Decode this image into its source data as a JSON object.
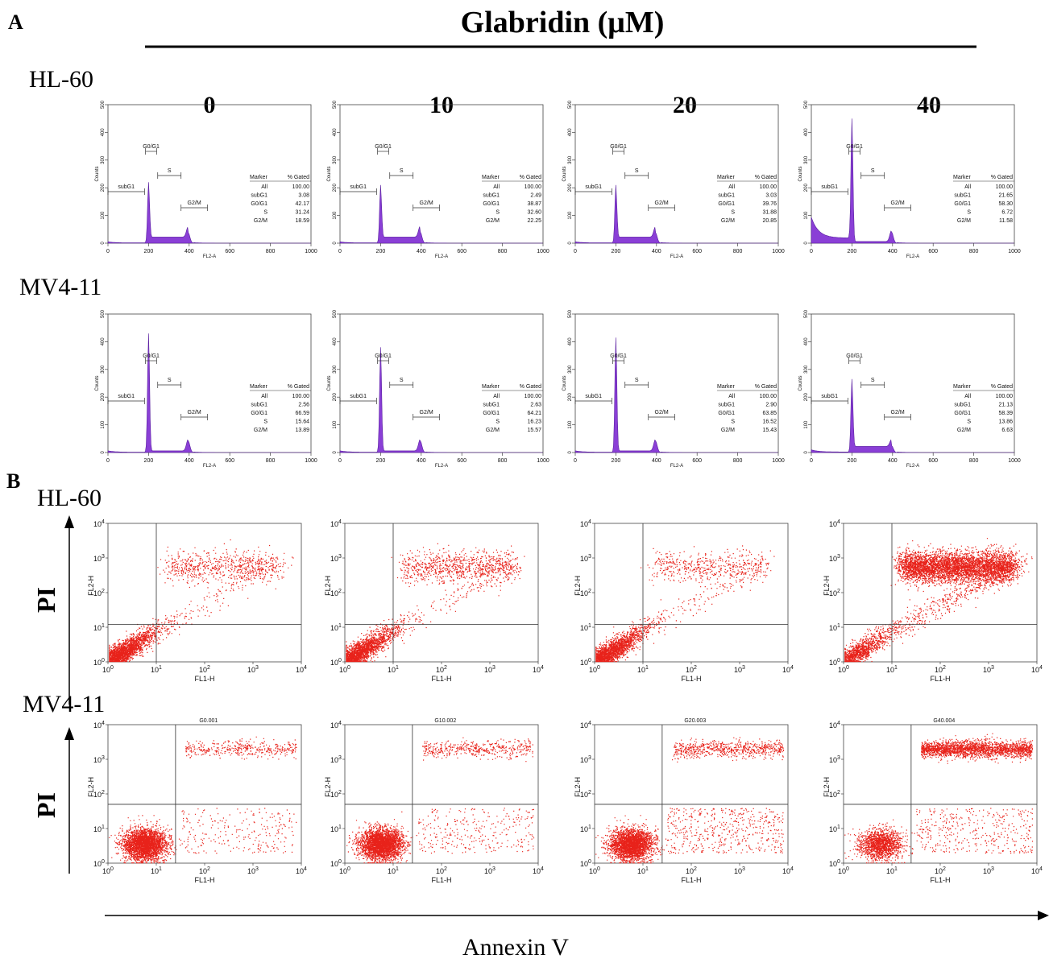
{
  "figure": {
    "panel_a_letter": "A",
    "panel_b_letter": "B",
    "treatment_title": "Glabridin (μM)",
    "concentrations": [
      "0",
      "10",
      "20",
      "40"
    ],
    "row_labels": {
      "a_top": "HL-60",
      "a_bottom": "MV4-11",
      "b_top": "HL-60",
      "b_bottom": "MV4-11"
    },
    "pi_label": "PI",
    "annexin_label": "Annexin V"
  },
  "chart_data": [
    {
      "type": "histogram",
      "panel": "A",
      "cell_line": "HL-60",
      "xlabel": "FL2-A",
      "ylabel": "Counts",
      "xlim": [
        0,
        1000
      ],
      "ylim": [
        0,
        500
      ],
      "x_ticks": [
        "0",
        "200",
        "400",
        "600",
        "800",
        "1000"
      ],
      "y_ticks": [
        "0",
        "100",
        "200",
        "300",
        "400",
        "500"
      ],
      "gate_labels": [
        "subG1",
        "G0/G1",
        "S",
        "G2/M"
      ],
      "table_headers": [
        "Marker",
        "% Gated"
      ],
      "table_markers": [
        "All",
        "subG1",
        "G0/G1",
        "S",
        "G2/M"
      ],
      "series": [
        {
          "concentration": "0",
          "values": [
            "100.00",
            "3.08",
            "42.17",
            "31.24",
            "18.59"
          ],
          "peak_g1": 220,
          "peak_g2": 38,
          "sub_g1_level": 4
        },
        {
          "concentration": "10",
          "values": [
            "100.00",
            "2.49",
            "38.87",
            "32.60",
            "22.25"
          ],
          "peak_g1": 210,
          "peak_g2": 40,
          "sub_g1_level": 4
        },
        {
          "concentration": "20",
          "values": [
            "100.00",
            "3.03",
            "39.76",
            "31.88",
            "20.85"
          ],
          "peak_g1": 210,
          "peak_g2": 38,
          "sub_g1_level": 4
        },
        {
          "concentration": "40",
          "values": [
            "100.00",
            "21.65",
            "58.30",
            "6.72",
            "11.58"
          ],
          "peak_g1": 450,
          "peak_g2": 40,
          "sub_g1_level": 75
        }
      ]
    },
    {
      "type": "histogram",
      "panel": "A",
      "cell_line": "MV4-11",
      "xlabel": "FL2-A",
      "ylabel": "Counts",
      "xlim": [
        0,
        1000
      ],
      "ylim": [
        0,
        500
      ],
      "x_ticks": [
        "0",
        "200",
        "400",
        "600",
        "800",
        "1000"
      ],
      "y_ticks": [
        "0",
        "100",
        "200",
        "300",
        "400",
        "500"
      ],
      "gate_labels": [
        "subG1",
        "G0/G1",
        "S",
        "G2/M"
      ],
      "table_headers": [
        "Marker",
        "% Gated"
      ],
      "table_markers": [
        "All",
        "subG1",
        "G0/G1",
        "S",
        "G2/M"
      ],
      "series": [
        {
          "concentration": "0",
          "values": [
            "100.00",
            "2.56",
            "66.59",
            "15.64",
            "13.89"
          ],
          "peak_g1": 430,
          "peak_g2": 42,
          "sub_g1_level": 5
        },
        {
          "concentration": "10",
          "values": [
            "100.00",
            "2.63",
            "64.21",
            "16.23",
            "15.57"
          ],
          "peak_g1": 380,
          "peak_g2": 42,
          "sub_g1_level": 5
        },
        {
          "concentration": "20",
          "values": [
            "100.00",
            "2.90",
            "63.85",
            "16.52",
            "15.43"
          ],
          "peak_g1": 415,
          "peak_g2": 42,
          "sub_g1_level": 5
        },
        {
          "concentration": "40",
          "values": [
            "100.00",
            "21.13",
            "58.39",
            "13.86",
            "6.63"
          ],
          "peak_g1": 265,
          "peak_g2": 25,
          "sub_g1_level": 8
        }
      ]
    },
    {
      "type": "scatter",
      "panel": "B",
      "cell_line": "HL-60",
      "xlabel": "FL1-H",
      "ylabel": "FL2-H",
      "x_scale": "log",
      "y_scale": "log",
      "xlim": [
        1,
        10000
      ],
      "ylim": [
        1,
        10000
      ],
      "gate": {
        "x": 10,
        "y": 12
      },
      "sample_names": [
        "",
        "",
        "",
        ""
      ],
      "densities": [
        {
          "concentration": "0",
          "lower_left": 2200,
          "early": 150,
          "late": 700
        },
        {
          "concentration": "10",
          "lower_left": 2200,
          "early": 150,
          "late": 900
        },
        {
          "concentration": "20",
          "lower_left": 2200,
          "early": 150,
          "late": 500
        },
        {
          "concentration": "40",
          "lower_left": 1200,
          "early": 500,
          "late": 4500
        }
      ]
    },
    {
      "type": "scatter",
      "panel": "B",
      "cell_line": "MV4-11",
      "xlabel": "FL1-H",
      "ylabel": "FL2-H",
      "x_scale": "log",
      "y_scale": "log",
      "xlim": [
        1,
        10000
      ],
      "ylim": [
        1,
        10000
      ],
      "gate": {
        "x": 25,
        "y": 50
      },
      "sample_names": [
        "G0.001",
        "G10.002",
        "G20.003",
        "G40.004"
      ],
      "densities": [
        {
          "concentration": "0",
          "lower_left": 3000,
          "early": 250,
          "late": 400
        },
        {
          "concentration": "10",
          "lower_left": 3000,
          "early": 300,
          "late": 450
        },
        {
          "concentration": "20",
          "lower_left": 2800,
          "early": 500,
          "late": 700
        },
        {
          "concentration": "40",
          "lower_left": 1500,
          "early": 400,
          "late": 2200
        }
      ]
    }
  ],
  "colors": {
    "histogram_fill": "#8a3fd6",
    "scatter_dot": "#e8221a",
    "axis": "#444444",
    "text": "#111111"
  }
}
